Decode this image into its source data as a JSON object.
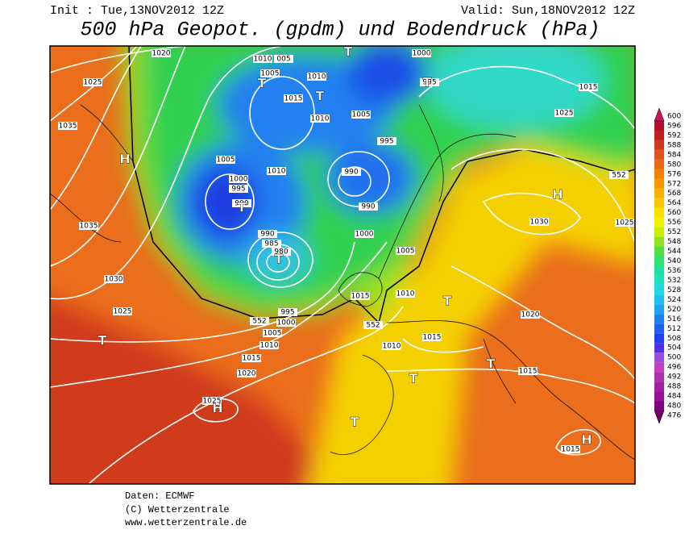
{
  "header": {
    "init": "Init : Tue,13NOV2012  12Z",
    "valid": "Valid: Sun,18NOV2012  12Z",
    "title": "500 hPa Geopot. (gpdm) und Bodendruck (hPa)"
  },
  "colorbar": {
    "levels": [
      476,
      480,
      484,
      488,
      492,
      496,
      500,
      504,
      508,
      512,
      516,
      520,
      524,
      528,
      532,
      536,
      540,
      544,
      548,
      552,
      556,
      560,
      564,
      568,
      572,
      576,
      580,
      584,
      588,
      592,
      596,
      600
    ],
    "colors": [
      "#6a0060",
      "#800080",
      "#9a1098",
      "#a020a0",
      "#b030b0",
      "#c040c0",
      "#9850d8",
      "#5030e0",
      "#2040f0",
      "#2060f0",
      "#2080f0",
      "#20a0f0",
      "#20c0f0",
      "#20d8e0",
      "#20e0c0",
      "#20e0a0",
      "#30e070",
      "#50e040",
      "#90e020",
      "#c8f000",
      "#f0f000",
      "#f8e000",
      "#f8c800",
      "#f8b000",
      "#f89800",
      "#f08000",
      "#e86818",
      "#e05020",
      "#d03820",
      "#c02020",
      "#b01030",
      "#d01060"
    ]
  },
  "map": {
    "isobar_labels": [
      "1020",
      "1010",
      "005",
      "1005",
      "1010",
      "1015",
      "1010",
      "1005",
      "1000",
      "995",
      "1015",
      "1025",
      "1035",
      "1025",
      "995",
      "990",
      "990",
      "1005",
      "1010",
      "1000",
      "995",
      "990",
      "1030",
      "1025",
      "1035",
      "1000",
      "990",
      "985",
      "980",
      "1005",
      "1030",
      "1015",
      "1010",
      "1025",
      "995",
      "1000",
      "1005",
      "1010",
      "1015",
      "1020",
      "1015",
      "1010",
      "1020",
      "1015",
      "1025",
      "1015",
      "552",
      "552",
      "552"
    ],
    "centers": [
      "H",
      "H",
      "H",
      "H",
      "T",
      "T",
      "T",
      "T",
      "T",
      "T",
      "T",
      "T",
      "T",
      "T",
      "T"
    ]
  },
  "footer": {
    "source": "Daten: ECMWF",
    "copyright": "(C) Wetterzentrale",
    "url": "www.wetterzentrale.de"
  }
}
